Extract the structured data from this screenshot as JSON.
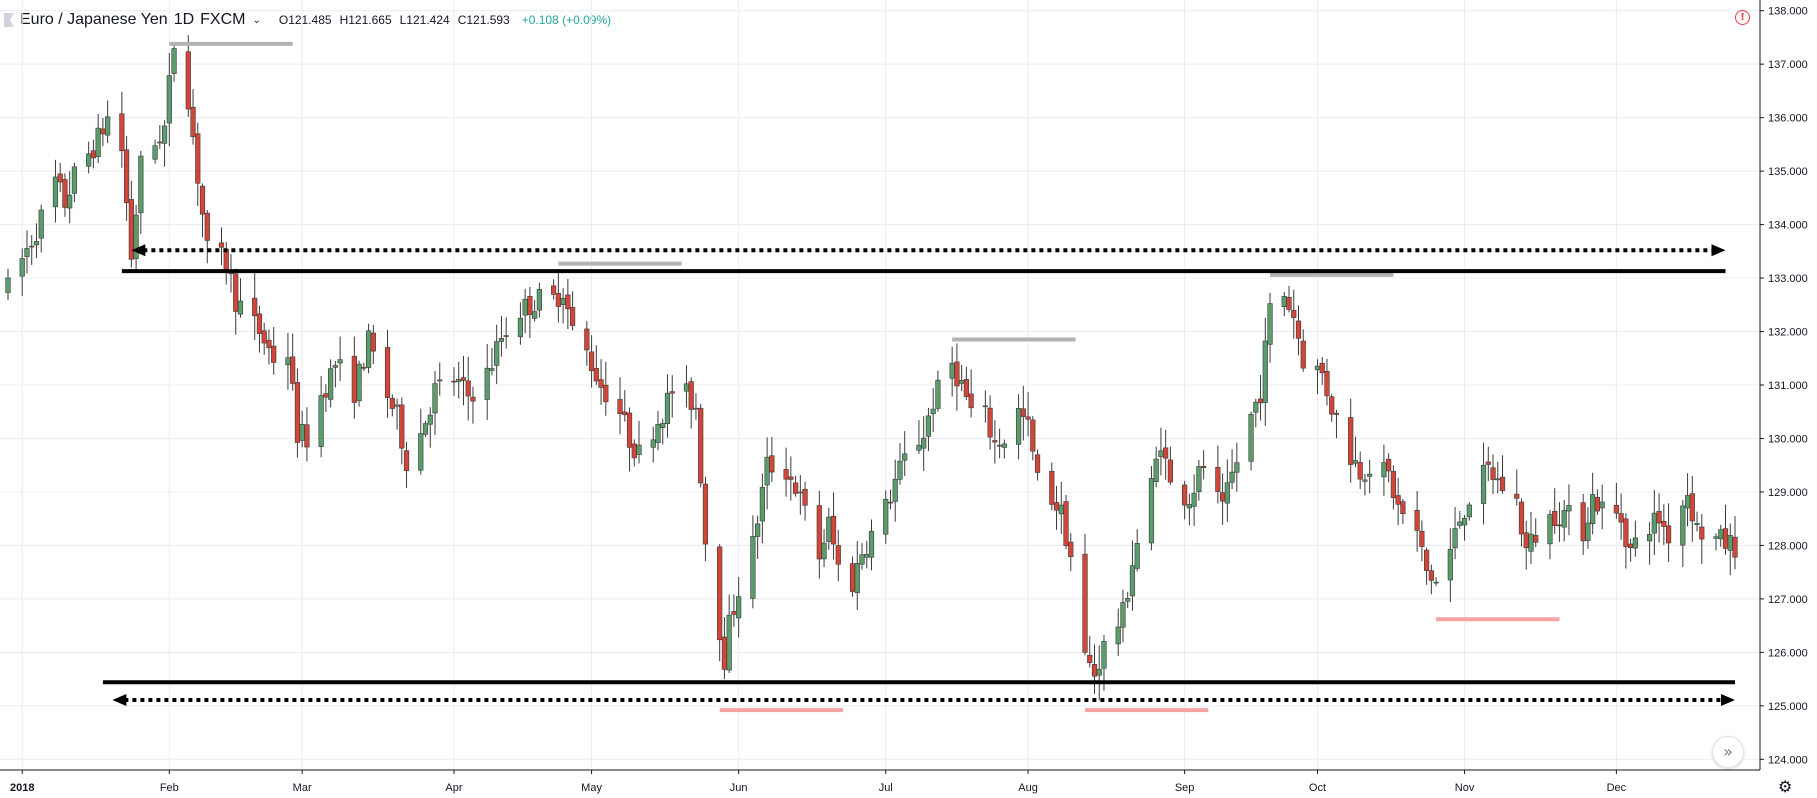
{
  "header": {
    "symbol": "Euro / Japanese Yen",
    "interval": "1D",
    "exchange": "FXCM",
    "open": "O121.485",
    "high": "H121.665",
    "low": "L121.424",
    "close": "C121.593",
    "change": "+0.108 (+0.09%)"
  },
  "icons": {
    "flag": "flag-icon",
    "alert": "alert-icon",
    "scroll": "scroll-right-icon",
    "settings": "gear-icon"
  },
  "colors": {
    "up": "#5b9c6c",
    "down": "#d2463a",
    "grid": "#e9ecf2",
    "level_line": "#000000",
    "swing_high_marker": "#b2b2b2",
    "swing_low_marker": "#f5a3a3"
  },
  "chart_data": {
    "type": "candlestick",
    "title": "Euro / Japanese Yen · 1D · FXCM",
    "xlabel": "",
    "ylabel": "",
    "x_range": [
      "2017-12-29",
      "2018-12-28"
    ],
    "ylim": [
      123.8,
      138.2
    ],
    "y_ticks": [
      "124.000",
      "125.000",
      "126.000",
      "127.000",
      "128.000",
      "129.000",
      "130.000",
      "131.000",
      "132.000",
      "133.000",
      "134.000",
      "135.000",
      "136.000",
      "137.000",
      "138.000"
    ],
    "x_ticks": [
      {
        "date": "2018-01-01",
        "label": "2018"
      },
      {
        "date": "2018-02-01",
        "label": "Feb"
      },
      {
        "date": "2018-03-01",
        "label": "Mar"
      },
      {
        "date": "2018-04-02",
        "label": "Apr"
      },
      {
        "date": "2018-05-01",
        "label": "May"
      },
      {
        "date": "2018-06-01",
        "label": "Jun"
      },
      {
        "date": "2018-07-02",
        "label": "Jul"
      },
      {
        "date": "2018-08-01",
        "label": "Aug"
      },
      {
        "date": "2018-09-03",
        "label": "Sep"
      },
      {
        "date": "2018-10-01",
        "label": "Oct"
      },
      {
        "date": "2018-11-01",
        "label": "Nov"
      },
      {
        "date": "2018-12-03",
        "label": "Dec"
      }
    ],
    "grid": true,
    "price_anchors": [
      [
        "2017-12-29",
        132.8
      ],
      [
        "2018-01-04",
        133.9
      ],
      [
        "2018-01-08",
        134.8
      ],
      [
        "2018-01-10",
        134.4
      ],
      [
        "2018-01-12",
        134.9
      ],
      [
        "2018-01-17",
        135.6
      ],
      [
        "2018-01-19",
        136.0
      ],
      [
        "2018-01-22",
        135.4
      ],
      [
        "2018-01-24",
        133.4
      ],
      [
        "2018-01-26",
        135.1
      ],
      [
        "2018-01-31",
        135.8
      ],
      [
        "2018-02-02",
        137.4
      ],
      [
        "2018-02-05",
        136.4
      ],
      [
        "2018-02-07",
        134.9
      ],
      [
        "2018-02-09",
        133.5
      ],
      [
        "2018-02-13",
        133.3
      ],
      [
        "2018-02-15",
        132.6
      ],
      [
        "2018-02-20",
        132.0
      ],
      [
        "2018-02-23",
        131.5
      ],
      [
        "2018-02-26",
        131.6
      ],
      [
        "2018-02-28",
        130.1
      ],
      [
        "2018-03-02",
        130.0
      ],
      [
        "2018-03-05",
        130.8
      ],
      [
        "2018-03-08",
        131.4
      ],
      [
        "2018-03-12",
        130.9
      ],
      [
        "2018-03-15",
        131.8
      ],
      [
        "2018-03-19",
        130.8
      ],
      [
        "2018-03-21",
        130.4
      ],
      [
        "2018-03-23",
        129.6
      ],
      [
        "2018-03-26",
        130.1
      ],
      [
        "2018-03-29",
        130.9
      ],
      [
        "2018-04-02",
        131.1
      ],
      [
        "2018-04-05",
        130.8
      ],
      [
        "2018-04-09",
        131.2
      ],
      [
        "2018-04-12",
        131.9
      ],
      [
        "2018-04-16",
        132.4
      ],
      [
        "2018-04-20",
        132.6
      ],
      [
        "2018-04-23",
        132.6
      ],
      [
        "2018-04-25",
        132.8
      ],
      [
        "2018-04-27",
        132.0
      ],
      [
        "2018-04-30",
        131.6
      ],
      [
        "2018-05-03",
        131.0
      ],
      [
        "2018-05-07",
        130.5
      ],
      [
        "2018-05-09",
        130.0
      ],
      [
        "2018-05-11",
        129.7
      ],
      [
        "2018-05-14",
        130.2
      ],
      [
        "2018-05-16",
        130.5
      ],
      [
        "2018-05-18",
        130.9
      ],
      [
        "2018-05-21",
        130.8
      ],
      [
        "2018-05-23",
        130.6
      ],
      [
        "2018-05-25",
        128.1
      ],
      [
        "2018-05-29",
        125.9
      ],
      [
        "2018-05-30",
        126.5
      ],
      [
        "2018-06-01",
        127.2
      ],
      [
        "2018-06-04",
        128.0
      ],
      [
        "2018-06-07",
        129.5
      ],
      [
        "2018-06-11",
        129.4
      ],
      [
        "2018-06-13",
        129.1
      ],
      [
        "2018-06-15",
        128.6
      ],
      [
        "2018-06-18",
        127.8
      ],
      [
        "2018-06-20",
        128.4
      ],
      [
        "2018-06-22",
        127.6
      ],
      [
        "2018-06-25",
        127.3
      ],
      [
        "2018-06-27",
        127.9
      ],
      [
        "2018-06-29",
        128.2
      ],
      [
        "2018-07-02",
        128.7
      ],
      [
        "2018-07-04",
        129.2
      ],
      [
        "2018-07-06",
        129.6
      ],
      [
        "2018-07-10",
        130.1
      ],
      [
        "2018-07-12",
        130.7
      ],
      [
        "2018-07-16",
        131.4
      ],
      [
        "2018-07-18",
        131.0
      ],
      [
        "2018-07-20",
        130.5
      ],
      [
        "2018-07-23",
        130.4
      ],
      [
        "2018-07-25",
        129.9
      ],
      [
        "2018-07-27",
        130.0
      ],
      [
        "2018-07-30",
        130.5
      ],
      [
        "2018-08-01",
        130.2
      ],
      [
        "2018-08-03",
        129.2
      ],
      [
        "2018-08-06",
        128.9
      ],
      [
        "2018-08-08",
        128.6
      ],
      [
        "2018-08-10",
        127.8
      ],
      [
        "2018-08-13",
        125.9
      ],
      [
        "2018-08-15",
        125.6
      ],
      [
        "2018-08-17",
        126.1
      ],
      [
        "2018-08-21",
        126.7
      ],
      [
        "2018-08-23",
        127.7
      ],
      [
        "2018-08-27",
        129.1
      ],
      [
        "2018-08-29",
        130.0
      ],
      [
        "2018-08-31",
        129.1
      ],
      [
        "2018-09-04",
        128.9
      ],
      [
        "2018-09-07",
        129.5
      ],
      [
        "2018-09-11",
        128.6
      ],
      [
        "2018-09-13",
        129.3
      ],
      [
        "2018-09-17",
        130.4
      ],
      [
        "2018-09-19",
        130.9
      ],
      [
        "2018-09-21",
        132.4
      ],
      [
        "2018-09-24",
        132.7
      ],
      [
        "2018-09-26",
        132.3
      ],
      [
        "2018-09-28",
        131.5
      ],
      [
        "2018-10-02",
        131.2
      ],
      [
        "2018-10-04",
        130.6
      ],
      [
        "2018-10-08",
        129.7
      ],
      [
        "2018-10-10",
        129.4
      ],
      [
        "2018-10-12",
        129.5
      ],
      [
        "2018-10-16",
        129.3
      ],
      [
        "2018-10-18",
        128.7
      ],
      [
        "2018-10-22",
        128.2
      ],
      [
        "2018-10-24",
        127.5
      ],
      [
        "2018-10-26",
        127.3
      ],
      [
        "2018-10-29",
        127.9
      ],
      [
        "2018-10-31",
        128.5
      ],
      [
        "2018-11-02",
        128.9
      ],
      [
        "2018-11-06",
        129.4
      ],
      [
        "2018-11-08",
        129.2
      ],
      [
        "2018-11-12",
        128.8
      ],
      [
        "2018-11-14",
        127.9
      ],
      [
        "2018-11-16",
        128.2
      ],
      [
        "2018-11-20",
        128.6
      ],
      [
        "2018-11-22",
        128.6
      ],
      [
        "2018-11-26",
        128.3
      ],
      [
        "2018-11-28",
        128.9
      ],
      [
        "2018-11-30",
        128.7
      ],
      [
        "2018-12-04",
        128.5
      ],
      [
        "2018-12-06",
        127.9
      ],
      [
        "2018-12-10",
        128.4
      ],
      [
        "2018-12-12",
        128.5
      ],
      [
        "2018-12-14",
        128.2
      ],
      [
        "2018-12-18",
        129.0
      ],
      [
        "2018-12-20",
        128.3
      ],
      [
        "2018-12-24",
        128.1
      ],
      [
        "2018-12-28",
        128.0
      ]
    ],
    "levels": [
      {
        "type": "resistance",
        "price": 133.13,
        "from": "2018-01-22",
        "to": "2018-12-26"
      },
      {
        "type": "support",
        "price": 125.44,
        "from": "2018-01-18",
        "to": "2018-12-28"
      }
    ],
    "range_arrows": [
      {
        "price": 133.52,
        "from": "2018-01-24",
        "to": "2018-12-26"
      },
      {
        "price": 125.11,
        "from": "2018-01-20",
        "to": "2018-12-28"
      }
    ],
    "swing_markers": [
      {
        "kind": "high",
        "price": 137.38,
        "from": "2018-02-01",
        "to": "2018-02-27"
      },
      {
        "kind": "high",
        "price": 133.27,
        "from": "2018-04-24",
        "to": "2018-05-20"
      },
      {
        "kind": "high",
        "price": 131.85,
        "from": "2018-07-16",
        "to": "2018-08-11"
      },
      {
        "kind": "high",
        "price": 133.06,
        "from": "2018-09-21",
        "to": "2018-10-17"
      },
      {
        "kind": "low",
        "price": 124.92,
        "from": "2018-05-28",
        "to": "2018-06-23"
      },
      {
        "kind": "low",
        "price": 124.92,
        "from": "2018-08-13",
        "to": "2018-09-08"
      },
      {
        "kind": "low",
        "price": 126.62,
        "from": "2018-10-26",
        "to": "2018-11-21"
      }
    ]
  }
}
